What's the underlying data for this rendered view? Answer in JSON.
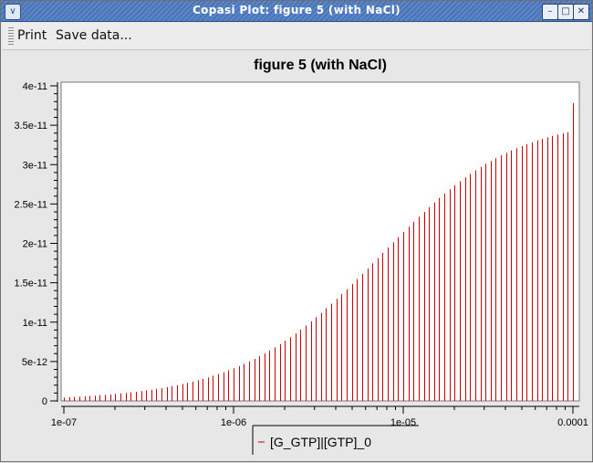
{
  "window": {
    "title": "Copasi Plot: figure 5 (with NaCl)",
    "icon_glyph": "∨",
    "minimize_glyph": "–",
    "maximize_glyph": "□",
    "close_glyph": "✕"
  },
  "toolbar": {
    "print_label": "Print",
    "save_label": "Save data..."
  },
  "chart_data": {
    "type": "bar",
    "title": "figure 5 (with NaCl)",
    "xscale": "log",
    "xlim": [
      1e-07,
      0.0001
    ],
    "ylim": [
      0,
      4e-11
    ],
    "x_ticks": [
      "1e-07",
      "1e-06",
      "1e-05",
      "0.0001"
    ],
    "y_ticks": [
      "0",
      "5e-12",
      "1e-11",
      "1.5e-11",
      "2e-11",
      "2.5e-11",
      "3e-11",
      "3.5e-11",
      "4e-11"
    ],
    "grid": false,
    "legend_position": "bottom",
    "series": [
      {
        "name": "[G_GTP]|[GTP]_0",
        "color": "#cc0000",
        "x": [
          1e-07,
          1.0723e-07,
          1.1498e-07,
          1.2328e-07,
          1.3219e-07,
          1.4175e-07,
          1.5199e-07,
          1.6298e-07,
          1.7475e-07,
          1.8738e-07,
          2.0092e-07,
          2.1544e-07,
          2.3101e-07,
          2.4771e-07,
          2.6561e-07,
          2.848e-07,
          3.0539e-07,
          3.2745e-07,
          3.5112e-07,
          3.7649e-07,
          4.037e-07,
          4.3288e-07,
          4.6416e-07,
          4.977e-07,
          5.3367e-07,
          5.7224e-07,
          6.1359e-07,
          6.5793e-07,
          7.0548e-07,
          7.5646e-07,
          8.1113e-07,
          8.6975e-07,
          9.326e-07,
          1e-06,
          1.0723e-06,
          1.1498e-06,
          1.2328e-06,
          1.3219e-06,
          1.4175e-06,
          1.5199e-06,
          1.6298e-06,
          1.7475e-06,
          1.8738e-06,
          2.0092e-06,
          2.1544e-06,
          2.3101e-06,
          2.4771e-06,
          2.6561e-06,
          2.848e-06,
          3.0539e-06,
          3.2745e-06,
          3.5112e-06,
          3.7649e-06,
          4.037e-06,
          4.3288e-06,
          4.6416e-06,
          4.977e-06,
          5.3367e-06,
          5.7224e-06,
          6.1359e-06,
          6.5793e-06,
          7.0548e-06,
          7.5646e-06,
          8.1113e-06,
          8.6975e-06,
          9.326e-06,
          1e-05,
          1.0723e-05,
          1.1498e-05,
          1.2328e-05,
          1.3219e-05,
          1.4175e-05,
          1.5199e-05,
          1.6298e-05,
          1.7475e-05,
          1.8738e-05,
          2.0092e-05,
          2.1544e-05,
          2.3101e-05,
          2.4771e-05,
          2.6561e-05,
          2.848e-05,
          3.0539e-05,
          3.2745e-05,
          3.5112e-05,
          3.7649e-05,
          4.037e-05,
          4.3288e-05,
          4.6416e-05,
          4.977e-05,
          5.3367e-05,
          5.7224e-05,
          6.1359e-05,
          6.5793e-05,
          7.0548e-05,
          7.5646e-05,
          8.1113e-05,
          8.6975e-05,
          9.326e-05,
          0.0001
        ],
        "values": [
          4.4e-13,
          4.8e-13,
          5.1e-13,
          5.5e-13,
          5.8e-13,
          6.2e-13,
          6.7e-13,
          7.2e-13,
          7.7e-13,
          8.2e-13,
          8.8e-13,
          9.4e-13,
          1.01e-12,
          1.08e-12,
          1.16e-12,
          1.24e-12,
          1.33e-12,
          1.42e-12,
          1.52e-12,
          1.63e-12,
          1.75e-12,
          1.87e-12,
          2e-12,
          2.14e-12,
          2.29e-12,
          2.45e-12,
          2.62e-12,
          2.8e-12,
          2.99e-12,
          3.2e-12,
          3.41e-12,
          3.64e-12,
          3.88e-12,
          4.14e-12,
          4.42e-12,
          4.71e-12,
          5.01e-12,
          5.33e-12,
          5.67e-12,
          6.03e-12,
          6.4e-12,
          6.8e-12,
          7.21e-12,
          7.64e-12,
          8.09e-12,
          8.56e-12,
          9.05e-12,
          9.56e-12,
          1.008e-11,
          1.062e-11,
          1.118e-11,
          1.175e-11,
          1.234e-11,
          1.295e-11,
          1.356e-11,
          1.419e-11,
          1.483e-11,
          1.548e-11,
          1.613e-11,
          1.679e-11,
          1.746e-11,
          1.813e-11,
          1.88e-11,
          1.947e-11,
          2.014e-11,
          2.08e-11,
          2.146e-11,
          2.211e-11,
          2.275e-11,
          2.338e-11,
          2.4e-11,
          2.461e-11,
          2.52e-11,
          2.577e-11,
          2.633e-11,
          2.687e-11,
          2.739e-11,
          2.789e-11,
          2.837e-11,
          2.883e-11,
          2.927e-11,
          2.969e-11,
          3.009e-11,
          3.047e-11,
          3.083e-11,
          3.117e-11,
          3.149e-11,
          3.18e-11,
          3.208e-11,
          3.235e-11,
          3.26e-11,
          3.284e-11,
          3.306e-11,
          3.327e-11,
          3.346e-11,
          3.364e-11,
          3.381e-11,
          3.397e-11,
          3.411e-11,
          3.78e-11
        ]
      }
    ]
  }
}
